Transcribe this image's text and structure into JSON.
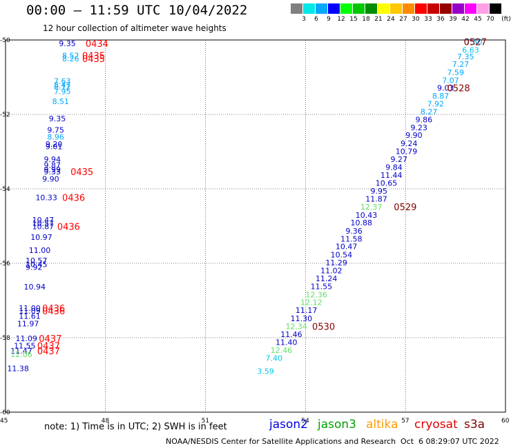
{
  "header": {
    "title": "00:00 – 11:59 UTC 10/04/2022",
    "subtitle": "12 hour collection of altimeter wave heights"
  },
  "legend": {
    "unit": "(ft)",
    "bins": [
      {
        "label": "3",
        "color": "#808080"
      },
      {
        "label": "6",
        "color": "#00e8e8"
      },
      {
        "label": "9",
        "color": "#00a8ff"
      },
      {
        "label": "12",
        "color": "#0000ff"
      },
      {
        "label": "15",
        "color": "#00ff00"
      },
      {
        "label": "18",
        "color": "#00c800"
      },
      {
        "label": "21",
        "color": "#008c00"
      },
      {
        "label": "24",
        "color": "#ffff00"
      },
      {
        "label": "27",
        "color": "#ffc800"
      },
      {
        "label": "30",
        "color": "#ff8c00"
      },
      {
        "label": "33",
        "color": "#ff0000"
      },
      {
        "label": "36",
        "color": "#c80000"
      },
      {
        "label": "39",
        "color": "#960000"
      },
      {
        "label": "42",
        "color": "#9600c8"
      },
      {
        "label": "45",
        "color": "#ff00ff"
      },
      {
        "label": "70",
        "color": "#ffa0e6"
      },
      {
        "label": "",
        "color": "#000000"
      }
    ]
  },
  "map": {
    "lon_range": [
      45,
      60
    ],
    "lat_range": [
      -60,
      -50
    ],
    "lon_ticks": [
      "45",
      "48",
      "51",
      "54",
      "57",
      "60"
    ],
    "lat_ticks": [
      "-50",
      "-52",
      "-54",
      "-56",
      "-58",
      "-60"
    ],
    "points": [
      {
        "lon": 46.6,
        "lat": -50.09,
        "v": "9.35",
        "c": "#0000c8"
      },
      {
        "lon": 46.7,
        "lat": -50.42,
        "v": "8.52",
        "c": "#00a8ff"
      },
      {
        "lon": 46.7,
        "lat": -50.5,
        "v": "8.26",
        "c": "#00a8ff"
      },
      {
        "lon": 46.45,
        "lat": -51.1,
        "v": "7.63",
        "c": "#00a8ff"
      },
      {
        "lon": 46.45,
        "lat": -51.2,
        "v": "8.47",
        "c": "#00a8ff"
      },
      {
        "lon": 46.45,
        "lat": -51.26,
        "v": "8.12",
        "c": "#00a8ff"
      },
      {
        "lon": 46.45,
        "lat": -51.38,
        "v": "7.95",
        "c": "#00a8ff"
      },
      {
        "lon": 46.4,
        "lat": -51.65,
        "v": "8.51",
        "c": "#00a8ff"
      },
      {
        "lon": 46.3,
        "lat": -52.11,
        "v": "9.35",
        "c": "#0000c8"
      },
      {
        "lon": 46.25,
        "lat": -52.42,
        "v": "9.75",
        "c": "#0000c8"
      },
      {
        "lon": 46.25,
        "lat": -52.6,
        "v": "8.96",
        "c": "#00a8ff"
      },
      {
        "lon": 46.2,
        "lat": -52.8,
        "v": "9.20",
        "c": "#0000c8"
      },
      {
        "lon": 46.2,
        "lat": -52.86,
        "v": "9.01",
        "c": "#0000c8"
      },
      {
        "lon": 46.15,
        "lat": -53.2,
        "v": "9.94",
        "c": "#0000c8"
      },
      {
        "lon": 46.15,
        "lat": -53.36,
        "v": "9.87",
        "c": "#0000c8"
      },
      {
        "lon": 46.15,
        "lat": -53.48,
        "v": "9.99",
        "c": "#0000c8"
      },
      {
        "lon": 46.15,
        "lat": -53.54,
        "v": "9.33",
        "c": "#0000c8"
      },
      {
        "lon": 46.1,
        "lat": -53.73,
        "v": "9.90",
        "c": "#0000c8"
      },
      {
        "lon": 45.9,
        "lat": -54.23,
        "v": "10.33",
        "c": "#0000c8"
      },
      {
        "lon": 45.8,
        "lat": -54.83,
        "v": "10.47",
        "c": "#0000c8"
      },
      {
        "lon": 45.8,
        "lat": -54.93,
        "v": "10.57",
        "c": "#0000c8"
      },
      {
        "lon": 45.8,
        "lat": -55.01,
        "v": "10.87",
        "c": "#0000c8"
      },
      {
        "lon": 45.75,
        "lat": -55.3,
        "v": "10.97",
        "c": "#0000c8"
      },
      {
        "lon": 45.7,
        "lat": -55.65,
        "v": "11.00",
        "c": "#0000c8"
      },
      {
        "lon": 45.6,
        "lat": -55.93,
        "v": "10.57",
        "c": "#0000c8"
      },
      {
        "lon": 45.6,
        "lat": -56.03,
        "v": "10.45",
        "c": "#0000c8"
      },
      {
        "lon": 45.6,
        "lat": -56.1,
        "v": "9.92",
        "c": "#0000c8"
      },
      {
        "lon": 45.55,
        "lat": -56.63,
        "v": "10.94",
        "c": "#0000c8"
      },
      {
        "lon": 45.4,
        "lat": -57.2,
        "v": "11.00",
        "c": "#0000c8"
      },
      {
        "lon": 45.4,
        "lat": -57.28,
        "v": "11.09",
        "c": "#0000c8"
      },
      {
        "lon": 45.4,
        "lat": -57.42,
        "v": "11.61",
        "c": "#0000c8"
      },
      {
        "lon": 45.35,
        "lat": -57.62,
        "v": "11.97",
        "c": "#0000c8"
      },
      {
        "lon": 45.3,
        "lat": -58.02,
        "v": "11.09",
        "c": "#0000c8"
      },
      {
        "lon": 45.25,
        "lat": -58.21,
        "v": "11.55",
        "c": "#0000c8"
      },
      {
        "lon": 45.15,
        "lat": -58.35,
        "v": "11.47",
        "c": "#0000c8"
      },
      {
        "lon": 45.15,
        "lat": -58.44,
        "v": "12.06",
        "c": "#60e060"
      },
      {
        "lon": 45.05,
        "lat": -58.82,
        "v": "11.38",
        "c": "#0000c8"
      },
      {
        "lon": 58.8,
        "lat": -50.05,
        "v": "7.50",
        "c": "#00a8ff"
      },
      {
        "lon": 58.7,
        "lat": -50.27,
        "v": "6.63",
        "c": "#00c8e8"
      },
      {
        "lon": 58.55,
        "lat": -50.44,
        "v": "7.35",
        "c": "#00a8ff"
      },
      {
        "lon": 58.4,
        "lat": -50.65,
        "v": "7.27",
        "c": "#00a8ff"
      },
      {
        "lon": 58.25,
        "lat": -50.87,
        "v": "7.59",
        "c": "#00a8ff"
      },
      {
        "lon": 58.1,
        "lat": -51.08,
        "v": "7.07",
        "c": "#00a8ff"
      },
      {
        "lon": 57.95,
        "lat": -51.29,
        "v": "9.03",
        "c": "#0000c8"
      },
      {
        "lon": 57.8,
        "lat": -51.5,
        "v": "8.87",
        "c": "#00a8ff"
      },
      {
        "lon": 57.65,
        "lat": -51.71,
        "v": "7.92",
        "c": "#00a8ff"
      },
      {
        "lon": 57.45,
        "lat": -51.93,
        "v": "8.27",
        "c": "#00a8ff"
      },
      {
        "lon": 57.3,
        "lat": -52.14,
        "v": "9.86",
        "c": "#0000c8"
      },
      {
        "lon": 57.15,
        "lat": -52.35,
        "v": "9.23",
        "c": "#0000c8"
      },
      {
        "lon": 57.0,
        "lat": -52.56,
        "v": "9.90",
        "c": "#0000c8"
      },
      {
        "lon": 56.85,
        "lat": -52.78,
        "v": "9.24",
        "c": "#0000c8"
      },
      {
        "lon": 56.7,
        "lat": -52.99,
        "v": "10.79",
        "c": "#0000c8"
      },
      {
        "lon": 56.55,
        "lat": -53.2,
        "v": "9.27",
        "c": "#0000c8"
      },
      {
        "lon": 56.4,
        "lat": -53.42,
        "v": "9.84",
        "c": "#0000c8"
      },
      {
        "lon": 56.25,
        "lat": -53.63,
        "v": "11.44",
        "c": "#0000c8"
      },
      {
        "lon": 56.1,
        "lat": -53.84,
        "v": "10.65",
        "c": "#0000c8"
      },
      {
        "lon": 55.95,
        "lat": -54.06,
        "v": "9.95",
        "c": "#0000c8"
      },
      {
        "lon": 55.8,
        "lat": -54.27,
        "v": "11.87",
        "c": "#0000c8"
      },
      {
        "lon": 55.65,
        "lat": -54.48,
        "v": "12.37",
        "c": "#60e060"
      },
      {
        "lon": 55.5,
        "lat": -54.7,
        "v": "10.43",
        "c": "#0000c8"
      },
      {
        "lon": 55.35,
        "lat": -54.91,
        "v": "10.88",
        "c": "#0000c8"
      },
      {
        "lon": 55.2,
        "lat": -55.13,
        "v": "9.36",
        "c": "#0000c8"
      },
      {
        "lon": 55.05,
        "lat": -55.34,
        "v": "11.58",
        "c": "#0000c8"
      },
      {
        "lon": 54.9,
        "lat": -55.55,
        "v": "10.47",
        "c": "#0000c8"
      },
      {
        "lon": 54.75,
        "lat": -55.77,
        "v": "10.54",
        "c": "#0000c8"
      },
      {
        "lon": 54.6,
        "lat": -55.98,
        "v": "11.29",
        "c": "#0000c8"
      },
      {
        "lon": 54.45,
        "lat": -56.19,
        "v": "11.02",
        "c": "#0000c8"
      },
      {
        "lon": 54.3,
        "lat": -56.41,
        "v": "11.24",
        "c": "#0000c8"
      },
      {
        "lon": 54.15,
        "lat": -56.62,
        "v": "11.55",
        "c": "#0000c8"
      },
      {
        "lon": 54.0,
        "lat": -56.84,
        "v": "12.36",
        "c": "#60e060"
      },
      {
        "lon": 53.85,
        "lat": -57.05,
        "v": "12.12",
        "c": "#60e060"
      },
      {
        "lon": 53.7,
        "lat": -57.26,
        "v": "11.17",
        "c": "#0000c8"
      },
      {
        "lon": 53.55,
        "lat": -57.48,
        "v": "11.30",
        "c": "#0000c8"
      },
      {
        "lon": 53.4,
        "lat": -57.69,
        "v": "12.34",
        "c": "#60e060"
      },
      {
        "lon": 53.25,
        "lat": -57.91,
        "v": "11.46",
        "c": "#0000c8"
      },
      {
        "lon": 53.1,
        "lat": -58.12,
        "v": "11.40",
        "c": "#0000c8"
      },
      {
        "lon": 52.95,
        "lat": -58.33,
        "v": "12.46",
        "c": "#60e060"
      },
      {
        "lon": 52.8,
        "lat": -58.55,
        "v": "7.40",
        "c": "#00c8e8"
      },
      {
        "lon": 52.55,
        "lat": -58.9,
        "v": "3.59",
        "c": "#00c8e8"
      }
    ],
    "time_labels": [
      {
        "lon": 47.4,
        "lat": -50.09,
        "t": "0434",
        "c": "#ff0000"
      },
      {
        "lon": 47.3,
        "lat": -50.42,
        "t": "0435",
        "c": "#ff0000"
      },
      {
        "lon": 47.3,
        "lat": -50.5,
        "t": "0435",
        "c": "#ff0000"
      },
      {
        "lon": 46.95,
        "lat": -53.54,
        "t": "0435",
        "c": "#ff0000"
      },
      {
        "lon": 46.7,
        "lat": -54.23,
        "t": "0436",
        "c": "#ff0000"
      },
      {
        "lon": 46.55,
        "lat": -55.01,
        "t": "0436",
        "c": "#ff0000"
      },
      {
        "lon": 46.1,
        "lat": -57.2,
        "t": "0436",
        "c": "#ff0000"
      },
      {
        "lon": 46.1,
        "lat": -57.28,
        "t": "0436",
        "c": "#ff0000"
      },
      {
        "lon": 46.0,
        "lat": -58.02,
        "t": "0437",
        "c": "#ff0000"
      },
      {
        "lon": 45.95,
        "lat": -58.21,
        "t": "0437",
        "c": "#ff0000"
      },
      {
        "lon": 45.95,
        "lat": -58.35,
        "t": "0437",
        "c": "#ff0000"
      },
      {
        "lon": 58.75,
        "lat": -50.05,
        "t": "0527",
        "c": "#800000"
      },
      {
        "lon": 58.25,
        "lat": -51.29,
        "t": "0528",
        "c": "#800000"
      },
      {
        "lon": 56.65,
        "lat": -54.48,
        "t": "0529",
        "c": "#800000"
      },
      {
        "lon": 54.2,
        "lat": -57.69,
        "t": "0530",
        "c": "#800000"
      }
    ]
  },
  "footer": {
    "note": "note:  1) Time is in UTC;  2) SWH is in feet",
    "satellites": [
      {
        "name": "jason2",
        "color": "#0000e0"
      },
      {
        "name": "jason3",
        "color": "#00a000"
      },
      {
        "name": "altika",
        "color": "#ff9900"
      },
      {
        "name": "cryosat",
        "color": "#e00000"
      },
      {
        "name": "s3a",
        "color": "#800000"
      }
    ],
    "credit": "NOAA/NESDIS Center for Satellite Applications and Research",
    "timestamp": "Oct  6 08:29:07 UTC 2022"
  }
}
